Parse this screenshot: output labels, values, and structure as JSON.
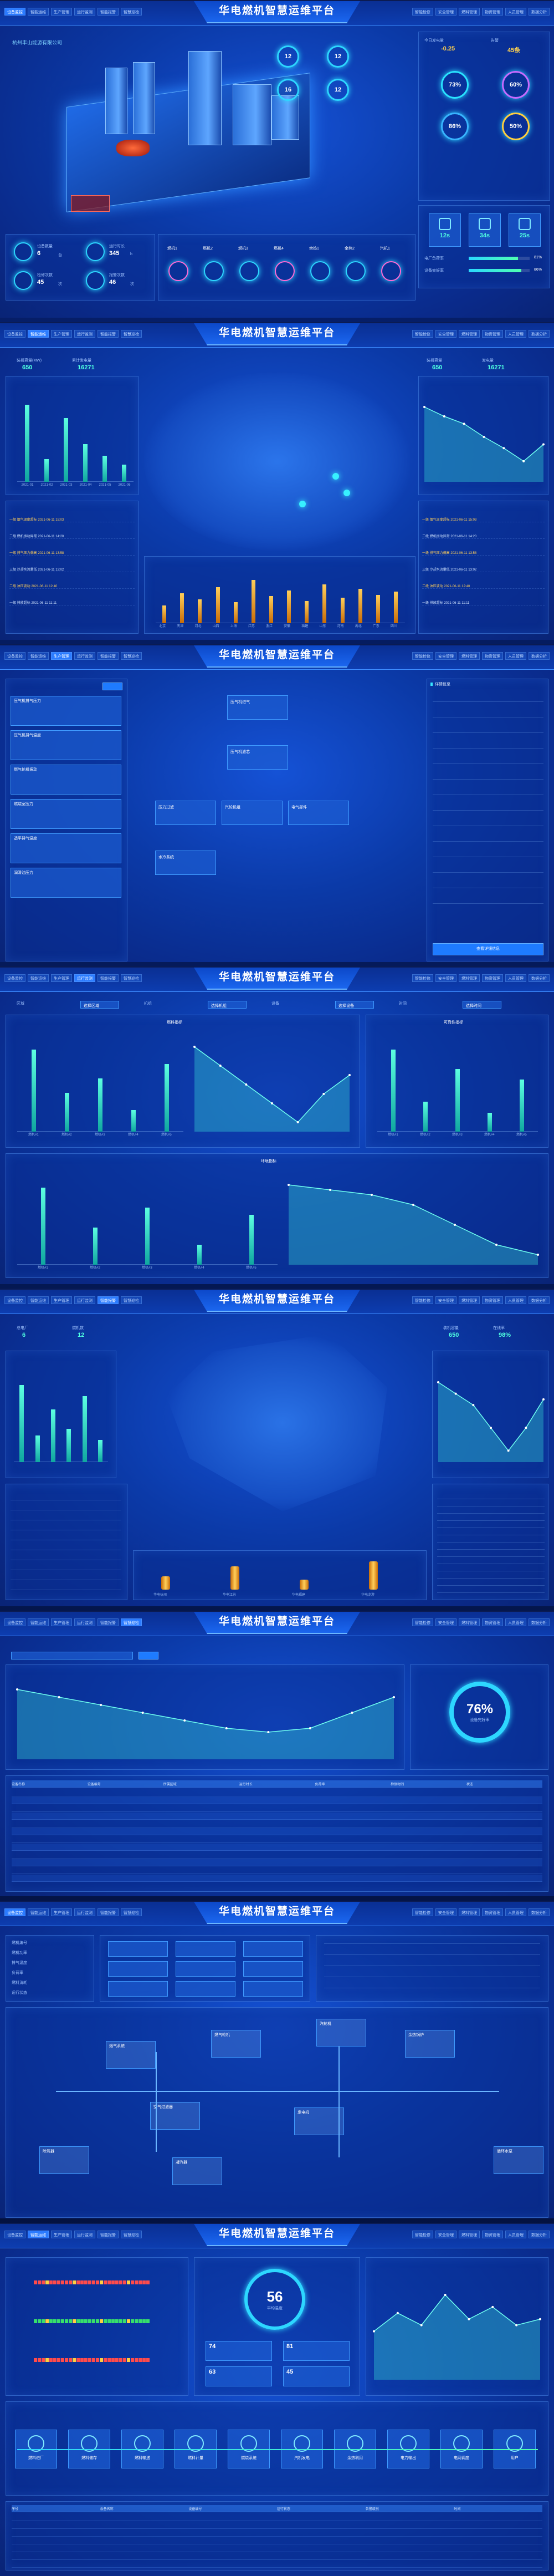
{
  "app": {
    "title": "华电燃机智慧运维平台",
    "company": "杭州丰山能源有限公司"
  },
  "nav_left": [
    "设备监控",
    "智能运维",
    "生产管理",
    "运行监测",
    "智能报警",
    "智慧巡检"
  ],
  "nav_right": [
    "智能检修",
    "安全管理",
    "燃料管理",
    "物资管理",
    "人员管理",
    "数据分析"
  ],
  "s1": {
    "kpi_top": [
      {
        "label": "今日发电量",
        "value": "-0.25"
      },
      {
        "label": "告警",
        "value": "45条"
      }
    ],
    "rings": [
      {
        "v": "73%"
      },
      {
        "v": "60%"
      },
      {
        "v": "86%"
      },
      {
        "v": "50%"
      }
    ],
    "tiles": [
      {
        "v": "12s"
      },
      {
        "v": "34s"
      },
      {
        "v": "25s"
      }
    ],
    "prog": [
      {
        "label": "电厂负荷率",
        "v": "81%"
      },
      {
        "label": "设备完好率",
        "v": "86%"
      }
    ],
    "left_stats": [
      {
        "label": "设备数量",
        "v": "6",
        "u": "台"
      },
      {
        "label": "运行时长",
        "v": "345",
        "u": "h"
      },
      {
        "label": "检修次数",
        "v": "45",
        "u": "次"
      },
      {
        "label": "报警次数",
        "v": "46",
        "u": "次"
      }
    ],
    "factory_nums": [
      "12",
      "12",
      "16",
      "12"
    ],
    "mini": [
      "燃机1",
      "燃机2",
      "燃机3",
      "燃机4",
      "余热1",
      "余热2",
      "汽机1"
    ]
  },
  "s2": {
    "kpi": [
      {
        "label": "装机容量(MW)",
        "v": "650"
      },
      {
        "label": "累计发电量",
        "v": "16271"
      }
    ],
    "kpi_r": [
      {
        "label": "装机容量",
        "v": "650"
      },
      {
        "label": "发电量",
        "v": "16271"
      }
    ],
    "bars_left": [
      82,
      24,
      68,
      40,
      28,
      18
    ],
    "xlabels": [
      "2021-01",
      "2021-02",
      "2021-03",
      "2021-04",
      "2021-05",
      "2021-06"
    ],
    "alarms": [
      "一级 烟气温度超标 2021-06-11 15:03",
      "二级 燃机振动异常 2021-06-11 14:20",
      "一级 排气压力偏高 2021-06-11 13:58",
      "三级 冷却水流量低 2021-06-11 13:02",
      "二级 油压波动 2021-06-11 12:40",
      "一级 排放超标 2021-06-11 11:11"
    ],
    "bottom_bars": [
      24,
      40,
      32,
      48,
      28,
      58,
      36,
      44,
      30,
      52,
      34,
      46,
      38,
      42
    ],
    "cities": [
      "北京",
      "天津",
      "河北",
      "山西",
      "上海",
      "江苏",
      "浙江",
      "安徽",
      "福建",
      "山东",
      "河南",
      "湖北",
      "广东",
      "四川"
    ]
  },
  "s3": {
    "items": [
      "压气机排气压力",
      "压气机排气温度",
      "燃气轮机振动",
      "燃烧室压力",
      "透平排气温度",
      "润滑油压力"
    ],
    "center": [
      "压气机进气",
      "压气机滤芯",
      "压力过滤",
      "汽轮机组",
      "电气部件",
      "水冷系统"
    ],
    "detail_title": "详情信息",
    "detail_btn": "查看详细信息"
  },
  "s4": {
    "filters": [
      "区域",
      "选择区域",
      "机组",
      "选择机组",
      "设备",
      "选择设备",
      "时间",
      "选择时间"
    ],
    "t1": "燃料指标",
    "t2": "可靠性指标",
    "t3": "环境指标",
    "bars_a": [
      68,
      32,
      44,
      18,
      56
    ],
    "bars_b": [
      60,
      22,
      46,
      14,
      38
    ],
    "bars_c": [
      62,
      30,
      46,
      16,
      40
    ],
    "xl": [
      "燃机#1",
      "燃机#2",
      "燃机#3",
      "燃机#4",
      "燃机#5"
    ]
  },
  "s5": {
    "kpi": [
      {
        "label": "总电厂",
        "v": "6"
      },
      {
        "label": "燃机数",
        "v": "12"
      }
    ],
    "kpi_r": [
      {
        "label": "装机容量",
        "v": "650"
      },
      {
        "label": "在线率",
        "v": "98%"
      }
    ],
    "bars": [
      70,
      24,
      48,
      30,
      60,
      20
    ],
    "cyl": [
      40,
      70,
      30,
      85
    ],
    "cylx": [
      "华电杭州",
      "华电江苏",
      "华电福建",
      "华电龙游"
    ]
  },
  "s6": {
    "ring_v": "76%",
    "ring_l": "设备完好率",
    "cols": [
      "设备名称",
      "设备编号",
      "所属区域",
      "运行时长",
      "负荷率",
      "检修时间",
      "状态"
    ],
    "rows": 12
  },
  "s7": {
    "info": [
      "燃机编号",
      "燃机功率",
      "排气温度",
      "负荷率",
      "燃料消耗",
      "运行状态"
    ],
    "diagram": [
      "烟气系统",
      "燃气轮机",
      "空气过滤器",
      "余热锅炉",
      "汽轮机",
      "发电机",
      "循环水泵",
      "凝汽器",
      "除氧器"
    ]
  },
  "s8": {
    "big": "56",
    "big_l": "平均温度",
    "legend": [
      "一号机组",
      "二号机组",
      "三号机组"
    ],
    "chips": [
      {
        "v": "74"
      },
      {
        "v": "81"
      },
      {
        "v": "63"
      },
      {
        "v": "45"
      }
    ],
    "flow": [
      "燃料进厂",
      "燃料储存",
      "燃料输送",
      "燃料计量",
      "燃烧系统",
      "汽机发电",
      "余热利用",
      "电力输出",
      "电网调度",
      "用户"
    ],
    "cols": [
      "序号",
      "设备名称",
      "设备编号",
      "运行状态",
      "告警级别",
      "时间"
    ]
  }
}
